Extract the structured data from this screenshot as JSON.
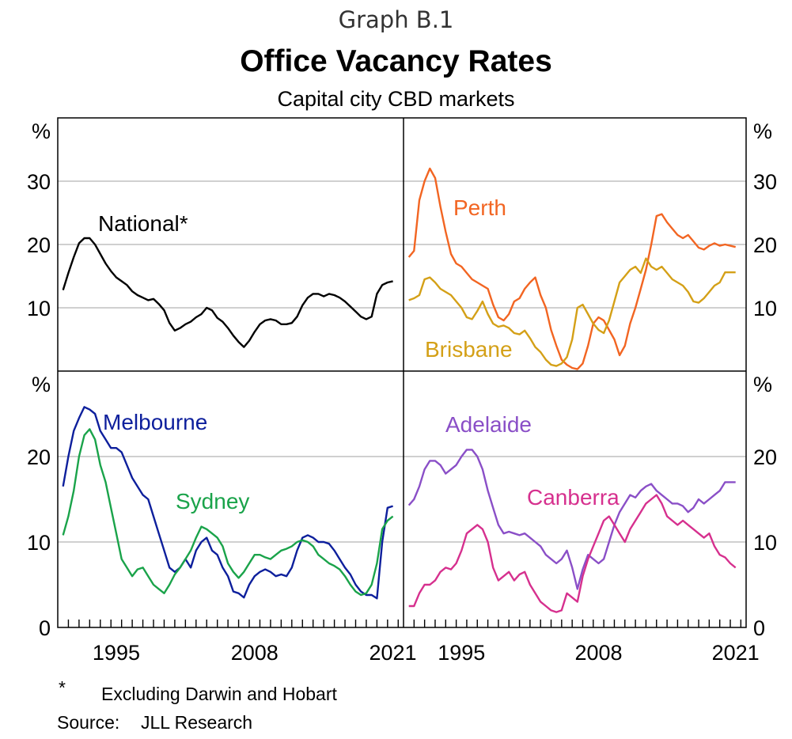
{
  "header": {
    "graph_label": "Graph B.1",
    "title": "Office Vacancy Rates",
    "subtitle": "Capital city CBD markets"
  },
  "footer": {
    "footnote_mark": "*",
    "footnote_text": "Excluding Darwin and Hobart",
    "source_label": "Source:",
    "source_text": "JLL Research"
  },
  "colors": {
    "National": "#000000",
    "Perth": "#f26522",
    "Brisbane": "#d4a017",
    "Melbourne": "#0d1f9c",
    "Sydney": "#1aa34a",
    "Adelaide": "#8a4fc7",
    "Canberra": "#d6308e",
    "grid": "#b5b5b5"
  },
  "chart_data": [
    {
      "type": "line",
      "panel": "top-left",
      "unit": "%",
      "xlim": [
        1990,
        2022.5
      ],
      "ylim": [
        0,
        40
      ],
      "yticks": [
        10,
        20,
        30
      ],
      "series": [
        {
          "name": "National*",
          "color": "#000000",
          "x": [
            1990.5,
            1991,
            1991.5,
            1992,
            1992.5,
            1993,
            1993.5,
            1994,
            1994.5,
            1995,
            1995.5,
            1996,
            1996.5,
            1997,
            1997.5,
            1998,
            1998.5,
            1999,
            1999.5,
            2000,
            2000.5,
            2001,
            2001.5,
            2002,
            2002.5,
            2003,
            2003.5,
            2004,
            2004.5,
            2005,
            2005.5,
            2006,
            2006.5,
            2007,
            2007.5,
            2008,
            2008.5,
            2009,
            2009.5,
            2010,
            2010.5,
            2011,
            2011.5,
            2012,
            2012.5,
            2013,
            2013.5,
            2014,
            2014.5,
            2015,
            2015.5,
            2016,
            2016.5,
            2017,
            2017.5,
            2018,
            2018.5,
            2019,
            2019.5,
            2020,
            2020.5,
            2021,
            2021.5
          ],
          "y": [
            12.8,
            15.5,
            18,
            20.2,
            21,
            21,
            20,
            18.5,
            17,
            15.8,
            14.8,
            14.2,
            13.6,
            12.6,
            12,
            11.6,
            11.2,
            11.4,
            10.6,
            9.6,
            7.6,
            6.4,
            6.8,
            7.4,
            7.8,
            8.5,
            9,
            10,
            9.6,
            8.4,
            7.8,
            6.8,
            5.6,
            4.6,
            3.8,
            4.8,
            6.2,
            7.4,
            8,
            8.2,
            8,
            7.4,
            7.4,
            7.6,
            8.6,
            10.4,
            11.6,
            12.2,
            12.2,
            11.8,
            12.2,
            12,
            11.6,
            11,
            10.2,
            9.4,
            8.6,
            8.2,
            8.6,
            12.2,
            13.6,
            14,
            14.2
          ]
        }
      ],
      "labels": [
        {
          "text": "National*",
          "series": "National*"
        }
      ]
    },
    {
      "type": "line",
      "panel": "top-right",
      "unit": "%",
      "xlim": [
        1990,
        2022.5
      ],
      "ylim": [
        0,
        40
      ],
      "yticks": [
        10,
        20,
        30
      ],
      "series": [
        {
          "name": "Perth",
          "color": "#f26522",
          "x": [
            1990.5,
            1991,
            1991.5,
            1992,
            1992.5,
            1993,
            1993.5,
            1994,
            1994.5,
            1995,
            1995.5,
            1996,
            1996.5,
            1997,
            1997.5,
            1998,
            1998.5,
            1999,
            1999.5,
            2000,
            2000.5,
            2001,
            2001.5,
            2002,
            2002.5,
            2003,
            2003.5,
            2004,
            2004.5,
            2005,
            2005.5,
            2006,
            2006.5,
            2007,
            2007.5,
            2008,
            2008.5,
            2009,
            2009.5,
            2010,
            2010.5,
            2011,
            2011.5,
            2012,
            2012.5,
            2013,
            2013.5,
            2014,
            2014.5,
            2015,
            2015.5,
            2016,
            2016.5,
            2017,
            2017.5,
            2018,
            2018.5,
            2019,
            2019.5,
            2020,
            2020.5,
            2021,
            2021.5
          ],
          "y": [
            18,
            19,
            27,
            30,
            32,
            30.5,
            26,
            22,
            18.5,
            17,
            16.5,
            15.5,
            14.5,
            14,
            13.5,
            13,
            10.5,
            8.5,
            8,
            9,
            11,
            11.5,
            13,
            14,
            14.8,
            12,
            10,
            6.5,
            4,
            1.8,
            1,
            0.5,
            0.3,
            1.2,
            4,
            7.5,
            8.5,
            8,
            6.5,
            5,
            2.5,
            4,
            7.5,
            10,
            13,
            16,
            20,
            24.5,
            24.8,
            23.5,
            22.5,
            21.5,
            21,
            21.5,
            20.5,
            19.5,
            19.2,
            19.8,
            20.2,
            19.8,
            20,
            19.8,
            19.6
          ]
        },
        {
          "name": "Brisbane",
          "color": "#d4a017",
          "x": [
            1990.5,
            1991,
            1991.5,
            1992,
            1992.5,
            1993,
            1993.5,
            1994,
            1994.5,
            1995,
            1995.5,
            1996,
            1996.5,
            1997,
            1997.5,
            1998,
            1998.5,
            1999,
            1999.5,
            2000,
            2000.5,
            2001,
            2001.5,
            2002,
            2002.5,
            2003,
            2003.5,
            2004,
            2004.5,
            2005,
            2005.5,
            2006,
            2006.5,
            2007,
            2007.5,
            2008,
            2008.5,
            2009,
            2009.5,
            2010,
            2010.5,
            2011,
            2011.5,
            2012,
            2012.5,
            2013,
            2013.5,
            2014,
            2014.5,
            2015,
            2015.5,
            2016,
            2016.5,
            2017,
            2017.5,
            2018,
            2018.5,
            2019,
            2019.5,
            2020,
            2020.5,
            2021,
            2021.5
          ],
          "y": [
            11.2,
            11.5,
            12,
            14.5,
            14.8,
            14,
            13,
            12.5,
            12,
            11,
            10,
            8.5,
            8.2,
            9.5,
            11,
            9,
            7.5,
            7,
            7.2,
            6.8,
            6,
            5.8,
            6.4,
            5.2,
            3.8,
            3,
            1.8,
            1,
            0.8,
            1.2,
            2.2,
            5,
            10,
            10.5,
            9,
            7.5,
            6.5,
            6,
            8,
            11,
            14,
            15,
            16,
            16.5,
            15.5,
            17.8,
            16.5,
            16,
            16.5,
            15.5,
            14.5,
            14,
            13.5,
            12.5,
            11,
            10.8,
            11.5,
            12.5,
            13.5,
            14,
            15.6,
            15.6,
            15.6
          ]
        }
      ],
      "labels": [
        {
          "text": "Perth",
          "series": "Perth"
        },
        {
          "text": "Brisbane",
          "series": "Brisbane"
        }
      ]
    },
    {
      "type": "line",
      "panel": "bottom-left",
      "unit": "%",
      "xlim": [
        1990,
        2022.5
      ],
      "ylim": [
        0,
        30
      ],
      "yticks": [
        0,
        10,
        20
      ],
      "xticks": [
        1995,
        2008,
        2021
      ],
      "series": [
        {
          "name": "Melbourne",
          "color": "#0d1f9c",
          "x": [
            1990.5,
            1991,
            1991.5,
            1992,
            1992.5,
            1993,
            1993.5,
            1994,
            1994.5,
            1995,
            1995.5,
            1996,
            1996.5,
            1997,
            1997.5,
            1998,
            1998.5,
            1999,
            1999.5,
            2000,
            2000.5,
            2001,
            2001.5,
            2002,
            2002.5,
            2003,
            2003.5,
            2004,
            2004.5,
            2005,
            2005.5,
            2006,
            2006.5,
            2007,
            2007.5,
            2008,
            2008.5,
            2009,
            2009.5,
            2010,
            2010.5,
            2011,
            2011.5,
            2012,
            2012.5,
            2013,
            2013.5,
            2014,
            2014.5,
            2015,
            2015.5,
            2016,
            2016.5,
            2017,
            2017.5,
            2018,
            2018.5,
            2019,
            2019.5,
            2020,
            2020.5,
            2021,
            2021.5
          ],
          "y": [
            16.5,
            20,
            23,
            24.5,
            25.8,
            25.5,
            25,
            23,
            22,
            21,
            21,
            20.5,
            19,
            17.5,
            16.5,
            15.5,
            15,
            13,
            11,
            9,
            7,
            6.5,
            7,
            8,
            7,
            9,
            10,
            10.5,
            9,
            8.5,
            7,
            6,
            4.2,
            4,
            3.5,
            5,
            6,
            6.5,
            6.8,
            6.5,
            6,
            6.2,
            6,
            7,
            9,
            10.5,
            10.8,
            10.5,
            10,
            10,
            9.8,
            9,
            8,
            7,
            6.2,
            5,
            4.2,
            3.8,
            3.8,
            3.4,
            10,
            14,
            14.2
          ]
        },
        {
          "name": "Sydney",
          "color": "#1aa34a",
          "x": [
            1990.5,
            1991,
            1991.5,
            1992,
            1992.5,
            1993,
            1993.5,
            1994,
            1994.5,
            1995,
            1995.5,
            1996,
            1996.5,
            1997,
            1997.5,
            1998,
            1998.5,
            1999,
            1999.5,
            2000,
            2000.5,
            2001,
            2001.5,
            2002,
            2002.5,
            2003,
            2003.5,
            2004,
            2004.5,
            2005,
            2005.5,
            2006,
            2006.5,
            2007,
            2007.5,
            2008,
            2008.5,
            2009,
            2009.5,
            2010,
            2010.5,
            2011,
            2011.5,
            2012,
            2012.5,
            2013,
            2013.5,
            2014,
            2014.5,
            2015,
            2015.5,
            2016,
            2016.5,
            2017,
            2017.5,
            2018,
            2018.5,
            2019,
            2019.5,
            2020,
            2020.5,
            2021,
            2021.5
          ],
          "y": [
            10.8,
            13,
            16,
            20,
            22.5,
            23.2,
            22,
            19,
            17,
            14,
            11,
            8,
            7,
            6,
            6.8,
            7,
            6,
            5,
            4.5,
            4,
            5,
            6.2,
            7,
            8,
            9,
            10.5,
            11.8,
            11.5,
            11,
            10.5,
            9.5,
            7.5,
            6.5,
            5.8,
            6.5,
            7.5,
            8.5,
            8.5,
            8.2,
            8,
            8.5,
            9,
            9.2,
            9.5,
            10,
            10.2,
            10,
            9.5,
            8.5,
            8,
            7.5,
            7.2,
            6.8,
            6,
            5,
            4.2,
            3.8,
            4,
            5,
            7.5,
            11.5,
            12.5,
            13
          ]
        }
      ],
      "labels": [
        {
          "text": "Melbourne",
          "series": "Melbourne"
        },
        {
          "text": "Sydney",
          "series": "Sydney"
        }
      ]
    },
    {
      "type": "line",
      "panel": "bottom-right",
      "unit": "%",
      "xlim": [
        1990,
        2022.5
      ],
      "ylim": [
        0,
        30
      ],
      "yticks": [
        0,
        10,
        20
      ],
      "xticks": [
        1995,
        2008,
        2021
      ],
      "series": [
        {
          "name": "Adelaide",
          "color": "#8a4fc7",
          "x": [
            1990.5,
            1991,
            1991.5,
            1992,
            1992.5,
            1993,
            1993.5,
            1994,
            1994.5,
            1995,
            1995.5,
            1996,
            1996.5,
            1997,
            1997.5,
            1998,
            1998.5,
            1999,
            1999.5,
            2000,
            2000.5,
            2001,
            2001.5,
            2002,
            2002.5,
            2003,
            2003.5,
            2004,
            2004.5,
            2005,
            2005.5,
            2006,
            2006.5,
            2007,
            2007.5,
            2008,
            2008.5,
            2009,
            2009.5,
            2010,
            2010.5,
            2011,
            2011.5,
            2012,
            2012.5,
            2013,
            2013.5,
            2014,
            2014.5,
            2015,
            2015.5,
            2016,
            2016.5,
            2017,
            2017.5,
            2018,
            2018.5,
            2019,
            2019.5,
            2020,
            2020.5,
            2021,
            2021.5
          ],
          "y": [
            14.3,
            15,
            16.5,
            18.5,
            19.5,
            19.5,
            19,
            18,
            18.5,
            19,
            20,
            20.8,
            20.8,
            20,
            18.5,
            16,
            14,
            12,
            11,
            11.2,
            11,
            10.8,
            11,
            10.5,
            10,
            9.5,
            8.5,
            8,
            7.5,
            8,
            9,
            7,
            4.5,
            6.8,
            8.5,
            8,
            7.5,
            8,
            10,
            12,
            13.5,
            14.5,
            15.5,
            15.2,
            16,
            16.5,
            16.8,
            16,
            15.5,
            15,
            14.5,
            14.5,
            14.2,
            13.5,
            14,
            15,
            14.5,
            15,
            15.5,
            16,
            17,
            17,
            17
          ]
        },
        {
          "name": "Canberra",
          "color": "#d6308e",
          "x": [
            1990.5,
            1991,
            1991.5,
            1992,
            1992.5,
            1993,
            1993.5,
            1994,
            1994.5,
            1995,
            1995.5,
            1996,
            1996.5,
            1997,
            1997.5,
            1998,
            1998.5,
            1999,
            1999.5,
            2000,
            2000.5,
            2001,
            2001.5,
            2002,
            2002.5,
            2003,
            2003.5,
            2004,
            2004.5,
            2005,
            2005.5,
            2006,
            2006.5,
            2007,
            2007.5,
            2008,
            2008.5,
            2009,
            2009.5,
            2010,
            2010.5,
            2011,
            2011.5,
            2012,
            2012.5,
            2013,
            2013.5,
            2014,
            2014.5,
            2015,
            2015.5,
            2016,
            2016.5,
            2017,
            2017.5,
            2018,
            2018.5,
            2019,
            2019.5,
            2020,
            2020.5,
            2021,
            2021.5
          ],
          "y": [
            2.5,
            2.5,
            4,
            5,
            5,
            5.5,
            6.5,
            7,
            6.8,
            7.5,
            9,
            11,
            11.5,
            12,
            11.5,
            10,
            7,
            5.5,
            6,
            6.5,
            5.5,
            6.2,
            6.5,
            5,
            4,
            3,
            2.5,
            2,
            1.8,
            2,
            4,
            3.5,
            3,
            6,
            8,
            9.5,
            11,
            12.5,
            13,
            12,
            11,
            10,
            11.5,
            12.5,
            13.5,
            14.5,
            15,
            15.5,
            14.5,
            13,
            12.5,
            12,
            12.5,
            12,
            11.5,
            11,
            10.5,
            11,
            9.5,
            8.5,
            8.2,
            7.5,
            7
          ]
        }
      ],
      "labels": [
        {
          "text": "Adelaide",
          "series": "Adelaide"
        },
        {
          "text": "Canberra",
          "series": "Canberra"
        }
      ]
    }
  ]
}
